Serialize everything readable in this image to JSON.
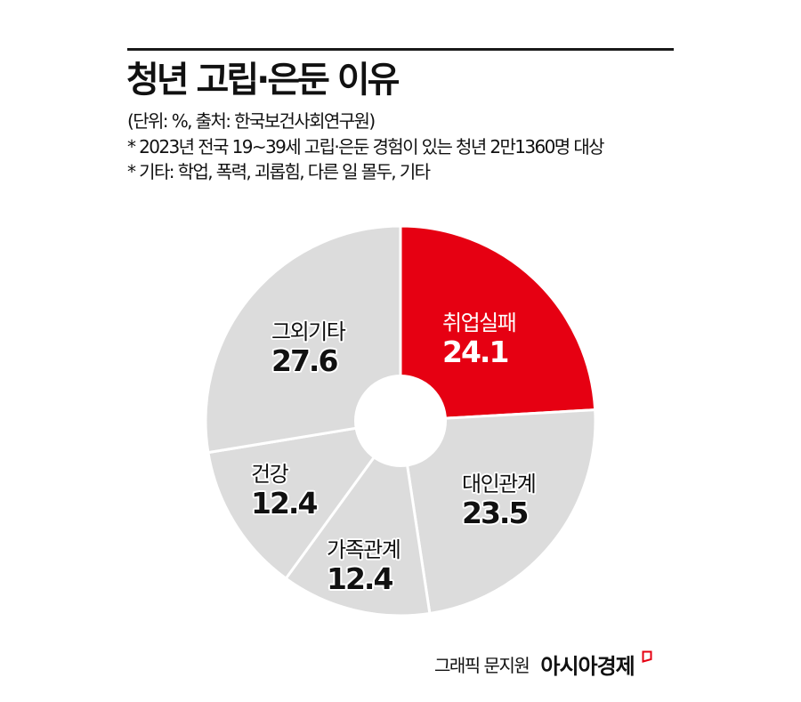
{
  "header": {
    "title": "청년 고립·은둔 이유",
    "unit_source": "(단위: %, 출처: 한국보건사회연구원)",
    "note1": "* 2023년 전국 19~39세 고립·은둔 경험이 있는 청년 2만1360명 대상",
    "note2": "* 기타: 학업, 폭력, 괴롭힘, 다른 일 몰두, 기타"
  },
  "colors": {
    "highlight": "#e60012",
    "default": "#dcdcdc",
    "separator": "#ffffff",
    "text": "#111111"
  },
  "chart_data": {
    "type": "pie",
    "donut": true,
    "title": "청년 고립·은둔 이유",
    "unit": "%",
    "source": "한국보건사회연구원",
    "start_angle": "12 o'clock, clockwise",
    "categories": [
      "취업실패",
      "대인관계",
      "가족관계",
      "건강",
      "그외기타"
    ],
    "values": [
      24.1,
      23.5,
      12.4,
      12.4,
      27.6
    ],
    "highlighted": "취업실패",
    "legend": "none (direct labels)"
  },
  "labels": [
    {
      "name": "취업실패",
      "value": "24.1"
    },
    {
      "name": "대인관계",
      "value": "23.5"
    },
    {
      "name": "가족관계",
      "value": "12.4"
    },
    {
      "name": "건강",
      "value": "12.4"
    },
    {
      "name": "그외기타",
      "value": "27.6"
    }
  ],
  "footer": {
    "credit": "그래픽 문지원",
    "brand": "아시아경제"
  }
}
